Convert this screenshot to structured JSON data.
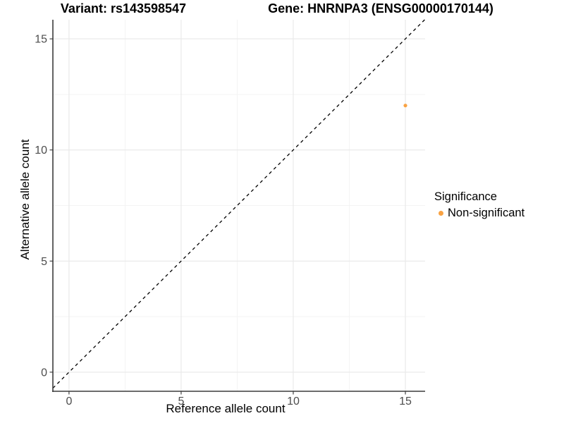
{
  "titles": {
    "variant": "Variant: rs143598547",
    "gene": "Gene: HNRNPA3 (ENSG00000170144)"
  },
  "axes": {
    "x_label": "Reference allele count",
    "y_label": "Alternative allele count"
  },
  "legend": {
    "title": "Significance",
    "items": [
      {
        "label": "Non-significant",
        "color": "#F9A242"
      }
    ]
  },
  "colors": {
    "point": "#F9A242",
    "grid_major": "#E8E8E8",
    "grid_minor": "#F3F3F3",
    "axis_line": "#3C3C3C",
    "tick_mark": "#333333",
    "tick_text": "#4D4D4D",
    "reference_line": "#000000"
  },
  "chart_data": {
    "type": "scatter",
    "title": "Variant: rs143598547 | Gene: HNRNPA3 (ENSG00000170144)",
    "xlabel": "Reference allele count",
    "ylabel": "Alternative allele count",
    "xlim": [
      -0.72,
      15.88
    ],
    "ylim": [
      -0.86,
      15.86
    ],
    "x_ticks": [
      0,
      5,
      10,
      15
    ],
    "y_ticks": [
      0,
      5,
      10,
      15
    ],
    "x_minor_ticks": [
      2.5,
      7.5,
      12.5
    ],
    "y_minor_ticks": [
      2.5,
      7.5,
      12.5
    ],
    "grid": "major+minor",
    "legend_position": "right",
    "legend_title": "Significance",
    "series": [
      {
        "name": "Non-significant",
        "color": "#F9A242",
        "points": [
          {
            "x": 15,
            "y": 12
          }
        ]
      }
    ],
    "reference_line": {
      "type": "identity",
      "slope": 1,
      "intercept": 0,
      "style": "dashed",
      "color": "#000000"
    }
  }
}
